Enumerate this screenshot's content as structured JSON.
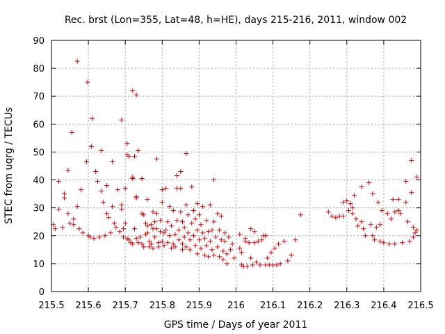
{
  "chart_data": {
    "type": "scatter",
    "title": "Rec. brst (Lon=355, Lat=48, h=HE), days 215-216, 2011, window 002",
    "xlabel": "GPS time / Days of year 2011",
    "ylabel": "STEC from uqrg / TECUs",
    "xlim": [
      215.5,
      216.5
    ],
    "ylim": [
      0,
      90
    ],
    "x_ticks": [
      "215.5",
      "215.6",
      "215.7",
      "215.8",
      "215.9",
      "216",
      "216.1",
      "216.2",
      "216.3",
      "216.4",
      "216.5"
    ],
    "y_ticks": [
      "0",
      "10",
      "20",
      "30",
      "40",
      "50",
      "60",
      "70",
      "80",
      "90"
    ],
    "grid": true,
    "marker": "plus",
    "color": "#cc0000",
    "points": [
      [
        215.505,
        24
      ],
      [
        215.51,
        22.5
      ],
      [
        215.52,
        39.5
      ],
      [
        215.52,
        29.5
      ],
      [
        215.53,
        23
      ],
      [
        215.535,
        35
      ],
      [
        215.535,
        33.5
      ],
      [
        215.545,
        43.5
      ],
      [
        215.545,
        28
      ],
      [
        215.55,
        24.5
      ],
      [
        215.555,
        57
      ],
      [
        215.56,
        26
      ],
      [
        215.56,
        24
      ],
      [
        215.57,
        82.5
      ],
      [
        215.57,
        30.5
      ],
      [
        215.575,
        22.5
      ],
      [
        215.58,
        36.5
      ],
      [
        215.585,
        21
      ],
      [
        215.595,
        46.5
      ],
      [
        215.598,
        75
      ],
      [
        215.6,
        20
      ],
      [
        215.605,
        19.5
      ],
      [
        215.608,
        52
      ],
      [
        215.61,
        62
      ],
      [
        215.615,
        19
      ],
      [
        215.62,
        43
      ],
      [
        215.625,
        39.5
      ],
      [
        215.63,
        19.5
      ],
      [
        215.635,
        50.5
      ],
      [
        215.635,
        36
      ],
      [
        215.64,
        32
      ],
      [
        215.645,
        20
      ],
      [
        215.65,
        38
      ],
      [
        215.65,
        28
      ],
      [
        215.655,
        26.5
      ],
      [
        215.66,
        21
      ],
      [
        215.665,
        46.5
      ],
      [
        215.665,
        30.5
      ],
      [
        215.67,
        24.5
      ],
      [
        215.675,
        23
      ],
      [
        215.68,
        36.5
      ],
      [
        215.685,
        21.5
      ],
      [
        215.69,
        61.5
      ],
      [
        215.69,
        31
      ],
      [
        215.69,
        29.5
      ],
      [
        215.695,
        22.5
      ],
      [
        215.695,
        19.5
      ],
      [
        215.7,
        37
      ],
      [
        215.7,
        24.5
      ],
      [
        215.705,
        53
      ],
      [
        215.705,
        49
      ],
      [
        215.705,
        19
      ],
      [
        215.71,
        48.5
      ],
      [
        215.71,
        18.5
      ],
      [
        215.715,
        17.5
      ],
      [
        215.72,
        72
      ],
      [
        215.72,
        41
      ],
      [
        215.72,
        40.5
      ],
      [
        215.72,
        17
      ],
      [
        215.725,
        48.5
      ],
      [
        215.725,
        22.5
      ],
      [
        215.73,
        70.5
      ],
      [
        215.73,
        34
      ],
      [
        215.73,
        33.5
      ],
      [
        215.73,
        19
      ],
      [
        215.735,
        50.5
      ],
      [
        215.735,
        17.5
      ],
      [
        215.74,
        19.5
      ],
      [
        215.745,
        40.5
      ],
      [
        215.745,
        28
      ],
      [
        215.745,
        17
      ],
      [
        215.75,
        27.5
      ],
      [
        215.75,
        16
      ],
      [
        215.755,
        24.5
      ],
      [
        215.755,
        20.5
      ],
      [
        215.76,
        33
      ],
      [
        215.76,
        23.5
      ],
      [
        215.76,
        21
      ],
      [
        215.765,
        18
      ],
      [
        215.765,
        16
      ],
      [
        215.77,
        24
      ],
      [
        215.77,
        17
      ],
      [
        215.775,
        28.5
      ],
      [
        215.775,
        22.5
      ],
      [
        215.775,
        15.5
      ],
      [
        215.78,
        25
      ],
      [
        215.78,
        19.5
      ],
      [
        215.785,
        47.5
      ],
      [
        215.785,
        28
      ],
      [
        215.785,
        22.5
      ],
      [
        215.79,
        17.5
      ],
      [
        215.79,
        16
      ],
      [
        215.795,
        25.5
      ],
      [
        215.795,
        21.5
      ],
      [
        215.8,
        36.5
      ],
      [
        215.8,
        32
      ],
      [
        215.8,
        18
      ],
      [
        215.805,
        21
      ],
      [
        215.805,
        16.5
      ],
      [
        215.81,
        37
      ],
      [
        215.81,
        22
      ],
      [
        215.815,
        25
      ],
      [
        215.815,
        17.5
      ],
      [
        215.82,
        30.5
      ],
      [
        215.82,
        20
      ],
      [
        215.825,
        23.5
      ],
      [
        215.825,
        15.5
      ],
      [
        215.83,
        29
      ],
      [
        215.83,
        17
      ],
      [
        215.835,
        20.5
      ],
      [
        215.835,
        16
      ],
      [
        215.84,
        41.5
      ],
      [
        215.84,
        37
      ],
      [
        215.84,
        25.5
      ],
      [
        215.845,
        22
      ],
      [
        215.845,
        18.5
      ],
      [
        215.85,
        43
      ],
      [
        215.85,
        37
      ],
      [
        215.85,
        28.5
      ],
      [
        215.855,
        25
      ],
      [
        215.855,
        17
      ],
      [
        215.855,
        15
      ],
      [
        215.86,
        23
      ],
      [
        215.86,
        19.5
      ],
      [
        215.865,
        49.5
      ],
      [
        215.865,
        31
      ],
      [
        215.865,
        16
      ],
      [
        215.87,
        27.5
      ],
      [
        215.87,
        21
      ],
      [
        215.875,
        18.5
      ],
      [
        215.875,
        15
      ],
      [
        215.88,
        37.5
      ],
      [
        215.88,
        24.5
      ],
      [
        215.885,
        29
      ],
      [
        215.885,
        20
      ],
      [
        215.89,
        26
      ],
      [
        215.89,
        16.5
      ],
      [
        215.895,
        31.5
      ],
      [
        215.895,
        22
      ],
      [
        215.895,
        13.5
      ],
      [
        215.9,
        27.5
      ],
      [
        215.9,
        18.5
      ],
      [
        215.905,
        24
      ],
      [
        215.905,
        15.5
      ],
      [
        215.91,
        30.5
      ],
      [
        215.91,
        21
      ],
      [
        215.915,
        19
      ],
      [
        215.915,
        13
      ],
      [
        215.92,
        25.5
      ],
      [
        215.92,
        16.5
      ],
      [
        215.925,
        21.5
      ],
      [
        215.925,
        12.5
      ],
      [
        215.93,
        31
      ],
      [
        215.93,
        18
      ],
      [
        215.935,
        22
      ],
      [
        215.935,
        15
      ],
      [
        215.94,
        40
      ],
      [
        215.94,
        25
      ],
      [
        215.94,
        13
      ],
      [
        215.945,
        19.5
      ],
      [
        215.95,
        28
      ],
      [
        215.95,
        16
      ],
      [
        215.955,
        22
      ],
      [
        215.955,
        12.5
      ],
      [
        215.96,
        27
      ],
      [
        215.96,
        18.5
      ],
      [
        215.965,
        14.5
      ],
      [
        215.965,
        11.5
      ],
      [
        215.97,
        21
      ],
      [
        215.97,
        18
      ],
      [
        215.975,
        13.5
      ],
      [
        215.975,
        10
      ],
      [
        215.98,
        19.5
      ],
      [
        215.985,
        15
      ],
      [
        215.99,
        17
      ],
      [
        215.995,
        12
      ],
      [
        216.01,
        20.5
      ],
      [
        216.01,
        15.5
      ],
      [
        216.015,
        14
      ],
      [
        216.015,
        9.5
      ],
      [
        216.02,
        9
      ],
      [
        216.025,
        19
      ],
      [
        216.025,
        18
      ],
      [
        216.03,
        9
      ],
      [
        216.035,
        17.5
      ],
      [
        216.04,
        22.5
      ],
      [
        216.04,
        12
      ],
      [
        216.045,
        9.5
      ],
      [
        216.05,
        21.5
      ],
      [
        216.05,
        17.5
      ],
      [
        216.055,
        10.5
      ],
      [
        216.06,
        18
      ],
      [
        216.065,
        9.5
      ],
      [
        216.07,
        18.5
      ],
      [
        216.075,
        20
      ],
      [
        216.08,
        20
      ],
      [
        216.08,
        9.5
      ],
      [
        216.085,
        12
      ],
      [
        216.09,
        9.5
      ],
      [
        216.095,
        14
      ],
      [
        216.1,
        9.5
      ],
      [
        216.105,
        15.5
      ],
      [
        216.11,
        9.5
      ],
      [
        216.115,
        17
      ],
      [
        216.12,
        10
      ],
      [
        216.13,
        18
      ],
      [
        216.14,
        11
      ],
      [
        216.15,
        13
      ],
      [
        216.16,
        18.5
      ],
      [
        216.175,
        27.5
      ],
      [
        216.25,
        28.5
      ],
      [
        216.26,
        27
      ],
      [
        216.27,
        26.5
      ],
      [
        216.28,
        27
      ],
      [
        216.29,
        32
      ],
      [
        216.29,
        27
      ],
      [
        216.3,
        32.5
      ],
      [
        216.305,
        29
      ],
      [
        216.31,
        31.5
      ],
      [
        216.315,
        30
      ],
      [
        216.315,
        28
      ],
      [
        216.32,
        34.5
      ],
      [
        216.325,
        26
      ],
      [
        216.33,
        23.5
      ],
      [
        216.34,
        37.5
      ],
      [
        216.34,
        25
      ],
      [
        216.345,
        22.5
      ],
      [
        216.35,
        20
      ],
      [
        216.36,
        39
      ],
      [
        216.365,
        24
      ],
      [
        216.37,
        35
      ],
      [
        216.37,
        20
      ],
      [
        216.375,
        18.5
      ],
      [
        216.38,
        23
      ],
      [
        216.385,
        32
      ],
      [
        216.39,
        24
      ],
      [
        216.39,
        18
      ],
      [
        216.395,
        29
      ],
      [
        216.4,
        17.5
      ],
      [
        216.41,
        28
      ],
      [
        216.415,
        17
      ],
      [
        216.42,
        26
      ],
      [
        216.425,
        33
      ],
      [
        216.43,
        28.5
      ],
      [
        216.43,
        17
      ],
      [
        216.44,
        29
      ],
      [
        216.44,
        33
      ],
      [
        216.445,
        28
      ],
      [
        216.45,
        17.5
      ],
      [
        216.46,
        32
      ],
      [
        216.46,
        39.5
      ],
      [
        216.465,
        25
      ],
      [
        216.47,
        18
      ],
      [
        216.475,
        47
      ],
      [
        216.475,
        35.5
      ],
      [
        216.48,
        23
      ],
      [
        216.48,
        19.5
      ],
      [
        216.485,
        21
      ],
      [
        216.49,
        41
      ],
      [
        216.49,
        22
      ]
    ]
  }
}
